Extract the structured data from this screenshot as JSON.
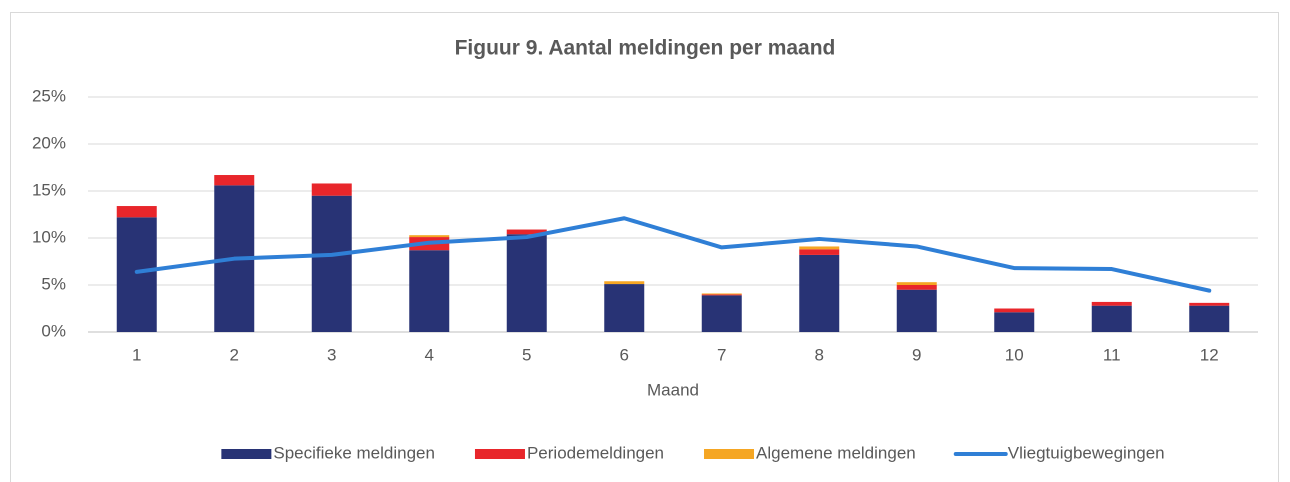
{
  "chart_data": {
    "type": "bar",
    "stacked": true,
    "title": "Figuur 9. Aantal meldingen per maand",
    "x_label": "Maand",
    "categories": [
      "1",
      "2",
      "3",
      "4",
      "5",
      "6",
      "7",
      "8",
      "9",
      "10",
      "11",
      "12"
    ],
    "series": [
      {
        "name": "Specifieke meldingen",
        "color": "#283375",
        "values": [
          12.2,
          15.6,
          14.5,
          8.7,
          10.4,
          5.1,
          3.9,
          8.2,
          4.5,
          2.1,
          2.8,
          2.8
        ]
      },
      {
        "name": "Periodemeldingen",
        "color": "#e8262b",
        "values": [
          1.2,
          1.1,
          1.3,
          1.4,
          0.5,
          0,
          0.1,
          0.6,
          0.5,
          0.4,
          0.4,
          0.3
        ]
      },
      {
        "name": "Algemene meldingen",
        "color": "#f5a623",
        "values": [
          0,
          0,
          0,
          0.2,
          0,
          0.3,
          0.1,
          0.3,
          0.3,
          0,
          0,
          0
        ]
      },
      {
        "name": "Vliegtuigbewegingen",
        "color": "#2f7fd6",
        "type": "line",
        "values": [
          6.4,
          7.8,
          8.2,
          9.5,
          10.1,
          12.1,
          9.0,
          9.9,
          9.1,
          6.8,
          6.7,
          4.4
        ]
      }
    ],
    "ylim": [
      0,
      25
    ],
    "yticks": [
      {
        "value": 0,
        "label": "0%"
      },
      {
        "value": 5,
        "label": "5%"
      },
      {
        "value": 10,
        "label": "10%"
      },
      {
        "value": 15,
        "label": "15%"
      },
      {
        "value": 20,
        "label": "20%"
      },
      {
        "value": 25,
        "label": "25%"
      }
    ],
    "grid": true,
    "legend": "bottom"
  }
}
